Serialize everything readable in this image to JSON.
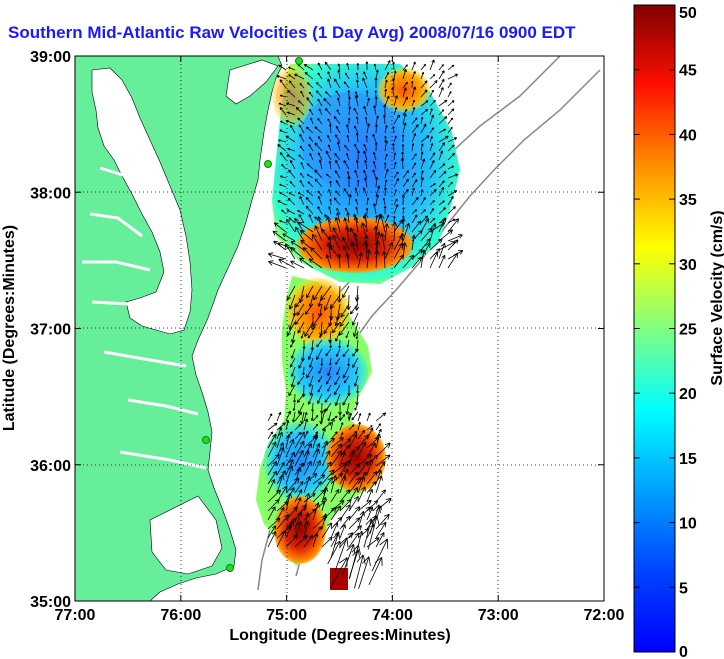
{
  "title": "Southern Mid-Atlantic Raw Velocities (1 Day Avg) 2008/07/16 0900 EDT",
  "x_axis": {
    "label": "Longitude (Degrees:Minutes)",
    "ticks": [
      "77:00",
      "76:00",
      "75:00",
      "74:00",
      "73:00",
      "72:00"
    ],
    "range_deg_west": [
      77,
      72
    ]
  },
  "y_axis": {
    "label": "Latitude (Degrees:Minutes)",
    "ticks": [
      "35:00",
      "36:00",
      "37:00",
      "38:00",
      "39:00"
    ],
    "range_deg_north": [
      35,
      39
    ]
  },
  "colorbar": {
    "label": "Surface Velocity (cm/s)",
    "ticks": [
      "0",
      "5",
      "10",
      "15",
      "20",
      "25",
      "30",
      "35",
      "40",
      "45",
      "50"
    ],
    "range": [
      0,
      50
    ],
    "units": "cm/s"
  },
  "colors": {
    "title": "#1a1aff",
    "land": "#66ee9a",
    "station": "#22dd22"
  },
  "grid": "dotted"
}
